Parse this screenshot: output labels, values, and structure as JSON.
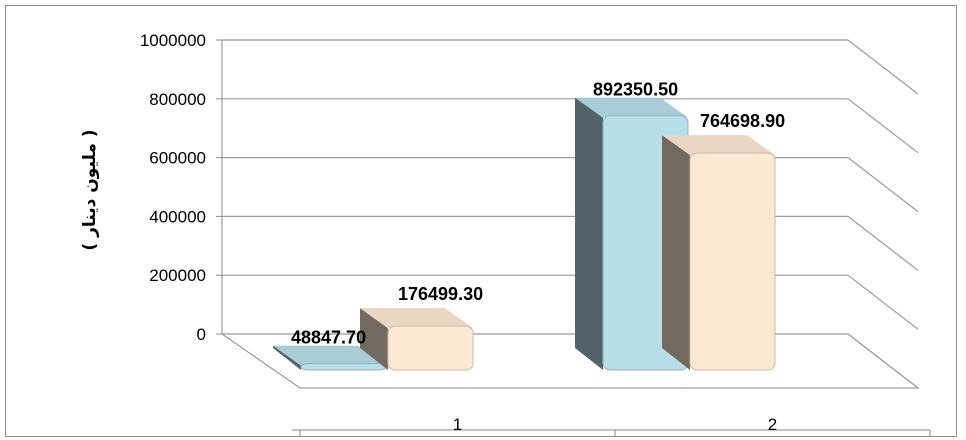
{
  "chart_data": {
    "type": "bar",
    "categories": [
      "1",
      "2"
    ],
    "series": [
      {
        "values": [
          48847.7,
          892350.5
        ],
        "color": "#b7dfea"
      },
      {
        "values": [
          176499.3,
          764698.9
        ],
        "color": "#fde9d3"
      }
    ],
    "value_labels": [
      [
        "48847.70",
        "892350.50"
      ],
      [
        "176499.30",
        "764698.90"
      ]
    ],
    "ylabel": "( مليون دينار )",
    "ylim": [
      0,
      1000000
    ],
    "yticks": [
      "0",
      "200000",
      "400000",
      "600000",
      "800000",
      "1000000"
    ],
    "grid": true,
    "style": "3d-column"
  }
}
